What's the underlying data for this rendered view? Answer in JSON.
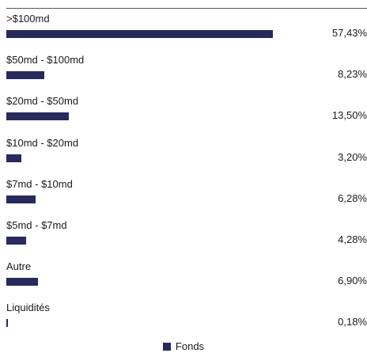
{
  "chart_data": {
    "type": "bar",
    "orientation": "horizontal",
    "categories": [
      ">$100md",
      "$50md - $100md",
      "$20md - $50md",
      "$10md - $20md",
      "$7md - $10md",
      "$5md - $7md",
      "Autre",
      "Liquidités"
    ],
    "series": [
      {
        "name": "Fonds",
        "values": [
          57.43,
          8.23,
          13.5,
          3.2,
          6.28,
          4.28,
          6.9,
          0.18
        ]
      }
    ],
    "value_labels": [
      "57,43%",
      "8,23%",
      "13,50%",
      "3,20%",
      "6,28%",
      "4,28%",
      "6,90%",
      "0,18%"
    ],
    "title": "",
    "xlabel": "",
    "ylabel": "",
    "xlim": [
      0,
      60
    ],
    "grid": false,
    "legend": {
      "placement": "bottom-center",
      "entries": [
        "Fonds"
      ]
    },
    "colors": {
      "bar": "#262a5c"
    }
  }
}
